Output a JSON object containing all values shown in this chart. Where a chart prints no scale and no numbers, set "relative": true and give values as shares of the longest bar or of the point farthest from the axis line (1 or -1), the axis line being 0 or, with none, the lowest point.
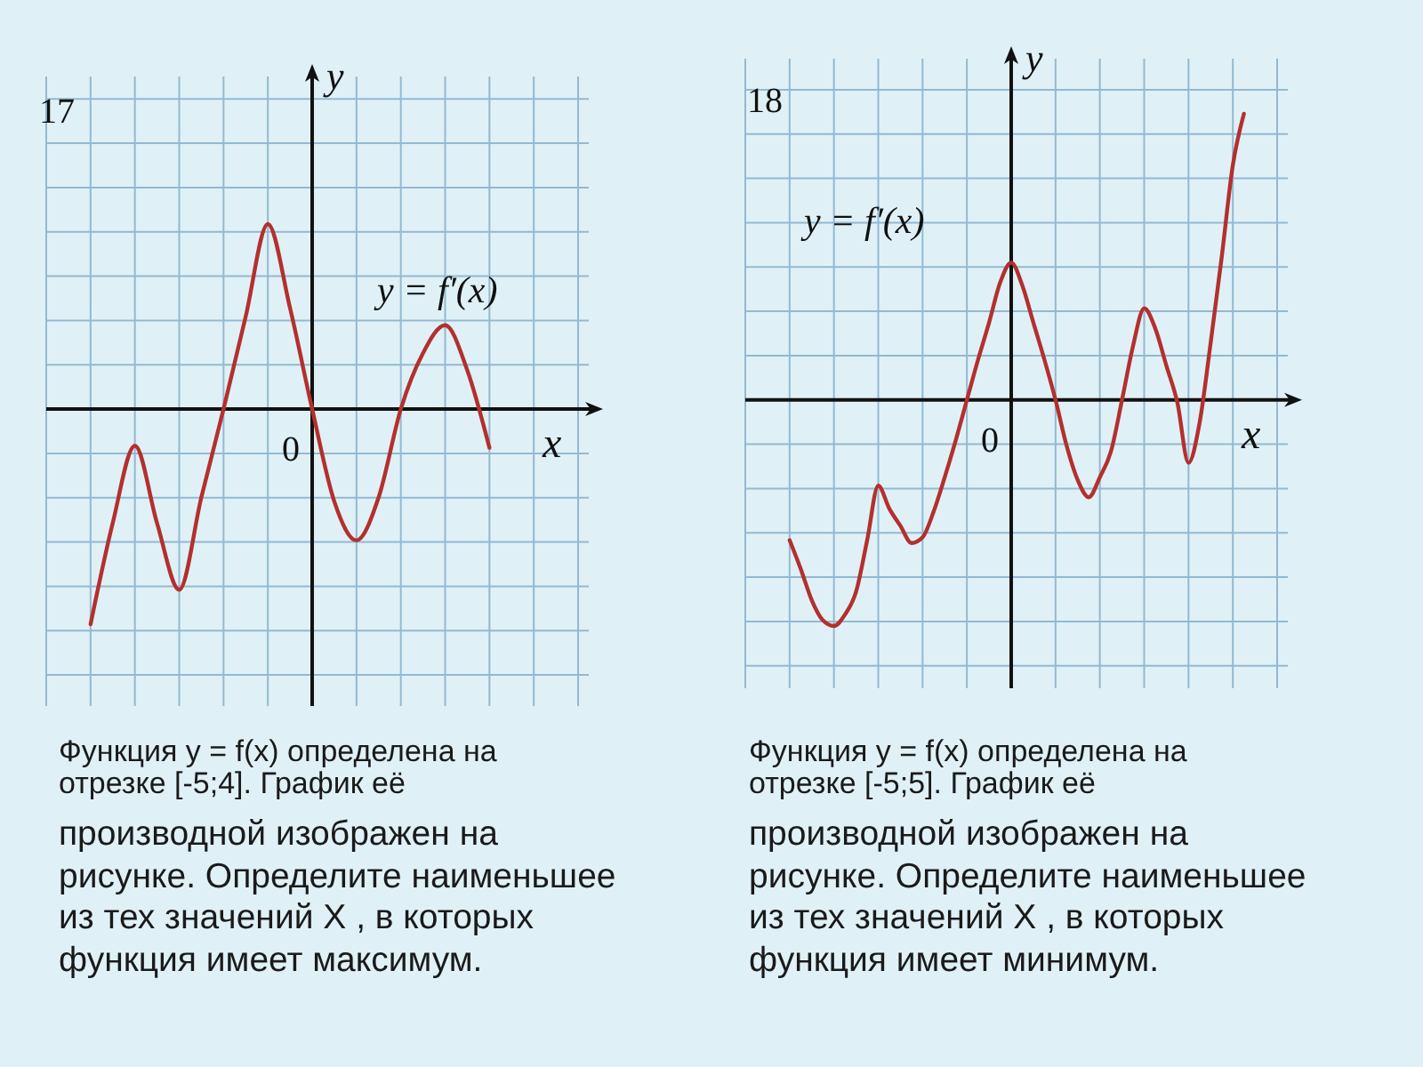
{
  "chart_data": [
    {
      "type": "line",
      "title": "17",
      "xlabel": "x",
      "ylabel": "y",
      "relative": true,
      "grid": true,
      "line_style": "solid",
      "categories": [
        null,
        null,
        null,
        null,
        null,
        null,
        null,
        null,
        null,
        null,
        null,
        null,
        null,
        null,
        null,
        null,
        null,
        null,
        null,
        null,
        null,
        null,
        null,
        null,
        null
      ],
      "series": [
        {
          "name": "y = f′(x)",
          "color": "#b3302e",
          "values": [
            null,
            null,
            -1,
            -0.53,
            -0.17,
            -0.53,
            -0.84,
            -0.41,
            0,
            0.43,
            0.86,
            0.47,
            0,
            -0.43,
            -0.61,
            -0.41,
            0,
            0.26,
            0.39,
            0.18,
            -0.18,
            null,
            null,
            null,
            null
          ]
        }
      ],
      "annotations": [
        "0",
        "Функция y = f(x) определена на\nотрезке [-5;4]. График её",
        "производной изображен на\nрисунке. Определите наименьшее\nиз тех значений X , в которых\nфункция имеет максимум."
      ]
    },
    {
      "type": "line",
      "title": "18",
      "xlabel": "x",
      "ylabel": "y",
      "relative": true,
      "grid": true,
      "line_style": "solid",
      "categories": [
        null,
        null,
        null,
        null,
        null,
        null,
        null,
        null,
        null,
        null,
        null,
        null,
        null,
        null,
        null,
        null,
        null,
        null,
        null,
        null,
        null,
        null,
        null,
        null,
        null,
        null,
        null,
        null,
        null,
        null,
        null,
        null,
        null,
        null,
        null,
        null,
        null,
        null,
        null,
        null,
        null,
        null,
        null,
        null,
        null,
        null,
        null,
        null,
        null
      ],
      "series": [
        {
          "name": "y = f′(x)",
          "color": "#b3302e",
          "values": [
            null,
            null,
            null,
            null,
            -0.49,
            -0.59,
            -0.7,
            -0.77,
            -0.79,
            -0.75,
            -0.67,
            -0.49,
            -0.3,
            -0.38,
            -0.44,
            -0.5,
            -0.48,
            -0.39,
            -0.27,
            -0.14,
            0,
            0.14,
            0.27,
            0.41,
            0.48,
            0.4,
            0.27,
            0.14,
            0,
            -0.16,
            -0.28,
            -0.34,
            -0.27,
            -0.18,
            0,
            0.19,
            0.32,
            0.25,
            0.12,
            -0.01,
            -0.22,
            -0.08,
            0.2,
            0.5,
            0.82,
            1,
            null,
            null,
            null
          ]
        }
      ],
      "annotations": [
        "0",
        "Функция y = f(x) определена на\nотрезке [-5;5]. График её",
        "производной изображен на\nрисунке. Определите наименьшее\nиз тех значений X , в которых\nфункция имеет минимум."
      ]
    }
  ]
}
